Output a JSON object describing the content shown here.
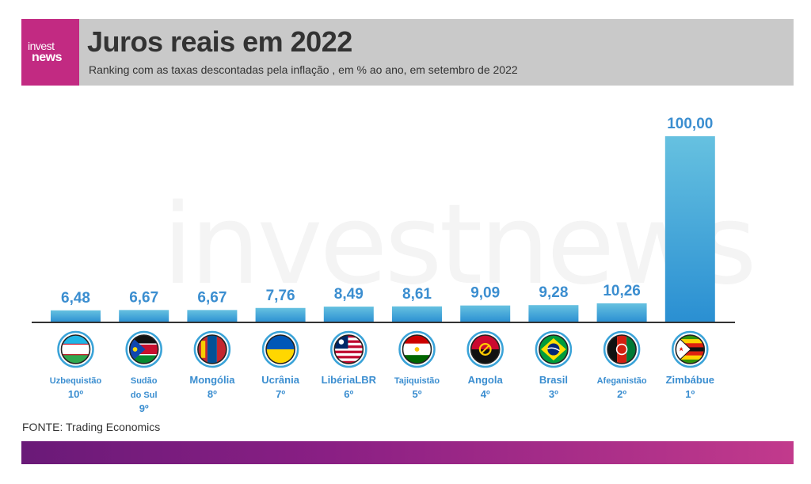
{
  "logo": {
    "line1": "invest",
    "line2": "news"
  },
  "title": "Juros reais em 2022",
  "subtitle": "Ranking com as taxas descontadas pela inflação , em % ao ano, em setembro de 2022",
  "watermark": "investnews",
  "source": "FONTE: Trading Economics",
  "colors": {
    "bar_top": "#66c1e0",
    "bar_bottom": "#2a8fd2",
    "value_label": "#3b8ed0",
    "country_label": "#3b8ed0",
    "header_bg": "#c9c9c9",
    "logo_bg": "#c22a82"
  },
  "chart_data": {
    "type": "bar",
    "title": "Juros reais em 2022",
    "categories": [
      "Uzbequistão",
      "Sudão do Sul",
      "Mongólia",
      "Ucrânia",
      "LibériaLBR",
      "Tajiquistão",
      "Angola",
      "Brasil",
      "Afeganistão",
      "Zimbábue"
    ],
    "ranks": [
      "10º",
      "9º",
      "8º",
      "7º",
      "6º",
      "5º",
      "4º",
      "3º",
      "2º",
      "1º"
    ],
    "values": [
      6.48,
      6.67,
      6.67,
      7.76,
      8.49,
      8.61,
      9.09,
      9.28,
      10.26,
      100.0
    ],
    "value_labels": [
      "6,48",
      "6,67",
      "6,67",
      "7,76",
      "8,49",
      "8,61",
      "9,09",
      "9,28",
      "10,26",
      "100,00"
    ],
    "flags": [
      "uzbekistan-flag-icon",
      "south-sudan-flag-icon",
      "mongolia-flag-icon",
      "ukraine-flag-icon",
      "liberia-flag-icon",
      "tajikistan-flag-icon",
      "angola-flag-icon",
      "brazil-flag-icon",
      "afghanistan-flag-icon",
      "zimbabwe-flag-icon"
    ],
    "ylim": [
      0,
      100
    ],
    "grid": false,
    "legend": "none"
  }
}
